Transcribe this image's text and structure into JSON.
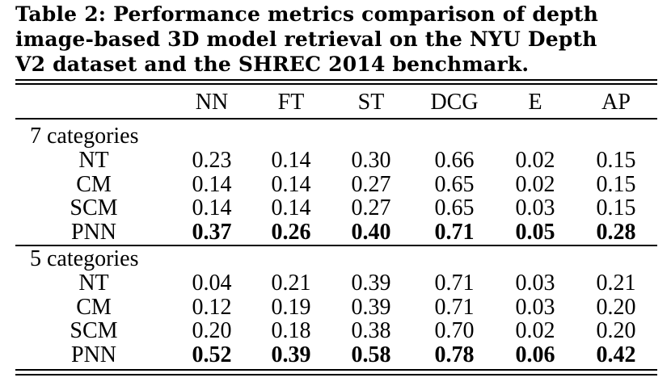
{
  "caption": {
    "line1": "Table 2: Performance metrics comparison of depth",
    "line2": "image-based 3D model retrieval on the NYU Depth",
    "line3": "V2 dataset and the SHREC 2014 benchmark."
  },
  "table": {
    "headers": [
      "NN",
      "FT",
      "ST",
      "DCG",
      "E",
      "AP"
    ],
    "sections": [
      {
        "label": "7 categories",
        "rows": [
          {
            "method": "NT",
            "values": [
              "0.23",
              "0.14",
              "0.30",
              "0.66",
              "0.02",
              "0.15"
            ],
            "bold": false
          },
          {
            "method": "CM",
            "values": [
              "0.14",
              "0.14",
              "0.27",
              "0.65",
              "0.02",
              "0.15"
            ],
            "bold": false
          },
          {
            "method": "SCM",
            "values": [
              "0.14",
              "0.14",
              "0.27",
              "0.65",
              "0.03",
              "0.15"
            ],
            "bold": false
          },
          {
            "method": "PNN",
            "values": [
              "0.37",
              "0.26",
              "0.40",
              "0.71",
              "0.05",
              "0.28"
            ],
            "bold": true
          }
        ]
      },
      {
        "label": "5 categories",
        "rows": [
          {
            "method": "NT",
            "values": [
              "0.04",
              "0.21",
              "0.39",
              "0.71",
              "0.03",
              "0.21"
            ],
            "bold": false
          },
          {
            "method": "CM",
            "values": [
              "0.12",
              "0.19",
              "0.39",
              "0.71",
              "0.03",
              "0.20"
            ],
            "bold": false
          },
          {
            "method": "SCM",
            "values": [
              "0.20",
              "0.18",
              "0.38",
              "0.70",
              "0.02",
              "0.20"
            ],
            "bold": false
          },
          {
            "method": "PNN",
            "values": [
              "0.52",
              "0.39",
              "0.58",
              "0.78",
              "0.06",
              "0.42"
            ],
            "bold": true
          }
        ]
      }
    ]
  }
}
